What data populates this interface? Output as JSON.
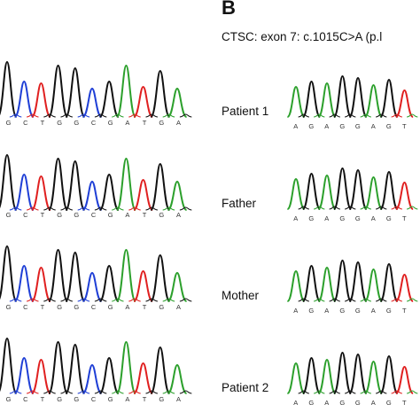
{
  "panel_b": {
    "letter": "B",
    "subtitle": "CTSC: exon 7: c.1015C>A (p.l"
  },
  "left_panel": {
    "rows": [
      {
        "sequence": [
          "G",
          "C",
          "T",
          "G",
          "G",
          "C",
          "G",
          "A",
          "T",
          "G",
          "A"
        ]
      },
      {
        "sequence": [
          "G",
          "C",
          "T",
          "G",
          "G",
          "C",
          "G",
          "A",
          "T",
          "G",
          "A"
        ]
      },
      {
        "sequence": [
          "G",
          "C",
          "T",
          "G",
          "G",
          "C",
          "G",
          "A",
          "T",
          "G",
          "A"
        ]
      },
      {
        "sequence": [
          "G",
          "C",
          "T",
          "G",
          "G",
          "C",
          "G",
          "A",
          "T",
          "G",
          "A"
        ]
      }
    ]
  },
  "right_panel": {
    "rows": [
      {
        "label": "Patient 1",
        "sequence": [
          "A",
          "G",
          "A",
          "G",
          "G",
          "A",
          "G",
          "T"
        ]
      },
      {
        "label": "Father",
        "sequence": [
          "A",
          "G",
          "A",
          "G",
          "G",
          "A",
          "G",
          "T"
        ]
      },
      {
        "label": "Mother",
        "sequence": [
          "A",
          "G",
          "A",
          "G",
          "G",
          "A",
          "G",
          "T"
        ]
      },
      {
        "label": "Patient 2",
        "sequence": []
      }
    ]
  },
  "colors": {
    "A": "#2ca02c",
    "C": "#1f3fd6",
    "G": "#111111",
    "T": "#e02020"
  }
}
